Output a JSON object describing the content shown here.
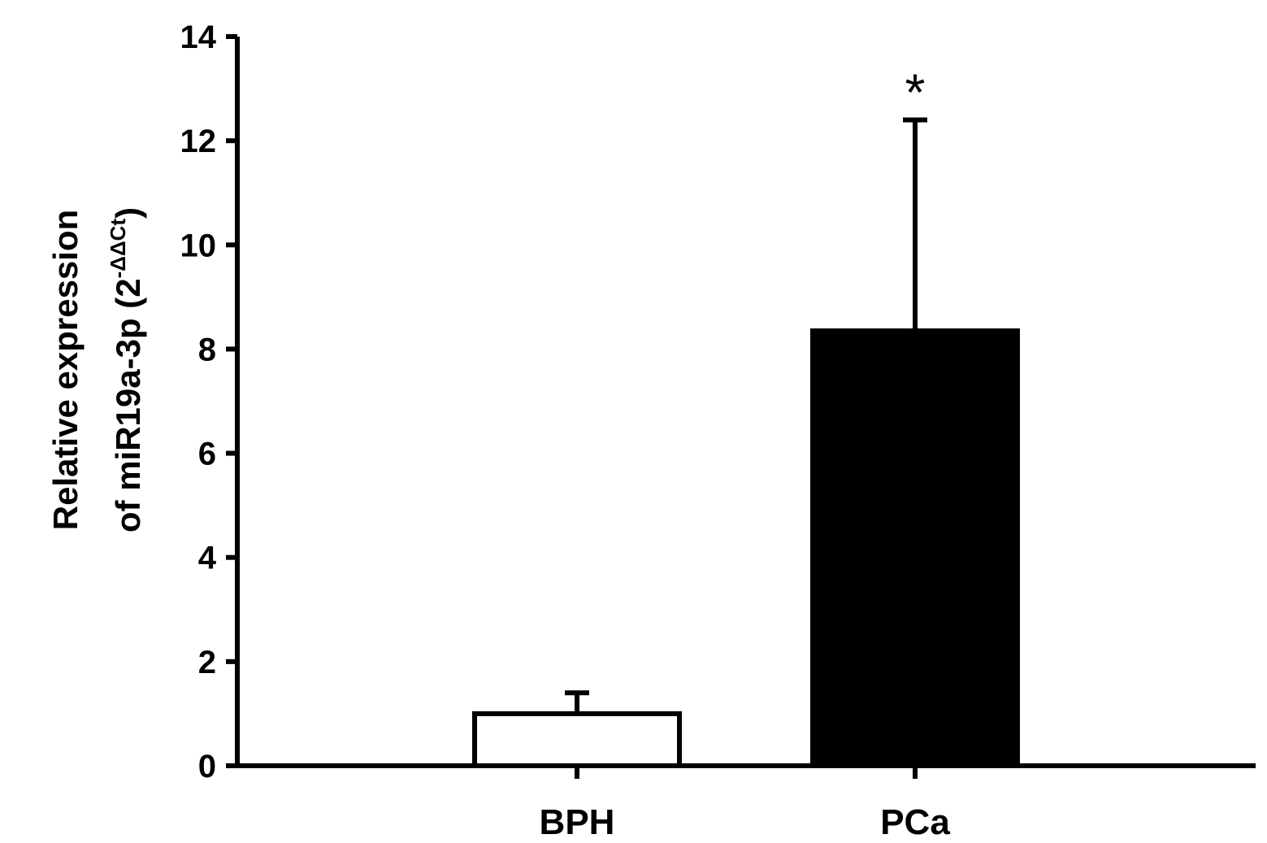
{
  "chart_data": {
    "type": "bar",
    "categories": [
      "BPH",
      "PCa"
    ],
    "values": [
      1.0,
      8.35
    ],
    "errors": [
      0.4,
      4.05
    ],
    "bar_colors": [
      "#ffffff",
      "#000000"
    ],
    "bar_edge_color": "#000000",
    "ylim": [
      0,
      14
    ],
    "yticks": [
      0,
      2,
      4,
      6,
      8,
      10,
      12,
      14
    ],
    "ylabel_line1": "Relative expression",
    "ylabel_line2_main": "of miR19a-3p (2",
    "ylabel_line2_sup": "-ΔΔCt",
    "ylabel_line2_end": ")",
    "xlabel": "",
    "grid": false,
    "legend": "none",
    "annotations": [
      {
        "category": "PCa",
        "text": "*"
      }
    ]
  }
}
